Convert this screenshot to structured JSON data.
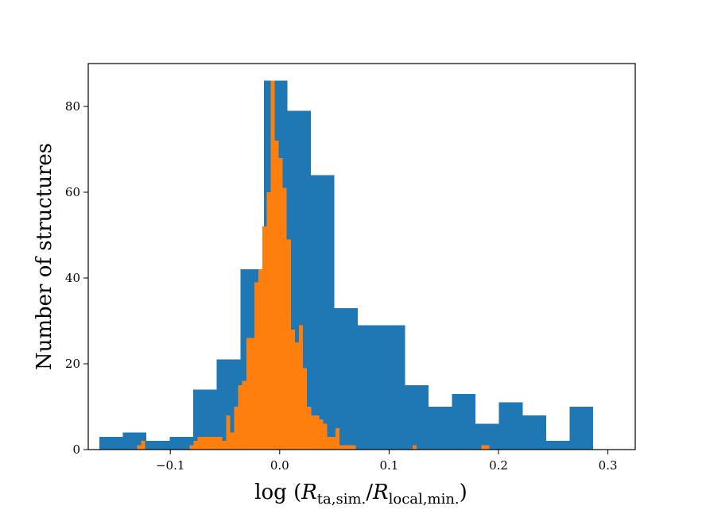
{
  "chart_data": {
    "type": "bar",
    "xlabel": "log (R_ta,sim./R_local,min.)",
    "xlabel_parts": {
      "prefix": "log (",
      "r1": "R",
      "sub1": "ta,sim.",
      "slash": "/",
      "r2": "R",
      "sub2": "local,min.",
      "suffix": ")"
    },
    "ylabel": "Number of structures",
    "xlim": [
      -0.175,
      0.325
    ],
    "ylim": [
      0,
      90
    ],
    "xticks": [
      -0.1,
      0.0,
      0.1,
      0.2,
      0.3
    ],
    "xtick_labels": [
      "−0.1",
      "0.0",
      "0.1",
      "0.2",
      "0.3"
    ],
    "yticks": [
      0,
      20,
      40,
      60,
      80
    ],
    "ytick_labels": [
      "0",
      "20",
      "40",
      "60",
      "80"
    ],
    "grid": false,
    "legend": false,
    "colors": {
      "series1": "#1f77b4",
      "series2": "#ff7f0e"
    },
    "series": [
      {
        "color": "#1f77b4",
        "bins": [
          {
            "x0": -0.165,
            "x1": -0.1435,
            "count": 3
          },
          {
            "x0": -0.1435,
            "x1": -0.122,
            "count": 4
          },
          {
            "x0": -0.122,
            "x1": -0.1005,
            "count": 2
          },
          {
            "x0": -0.1005,
            "x1": -0.079,
            "count": 3
          },
          {
            "x0": -0.079,
            "x1": -0.0575,
            "count": 14
          },
          {
            "x0": -0.0575,
            "x1": -0.036,
            "count": 21
          },
          {
            "x0": -0.036,
            "x1": -0.0145,
            "count": 42
          },
          {
            "x0": -0.0145,
            "x1": 0.007,
            "count": 86
          },
          {
            "x0": 0.007,
            "x1": 0.0285,
            "count": 79
          },
          {
            "x0": 0.0285,
            "x1": 0.05,
            "count": 64
          },
          {
            "x0": 0.05,
            "x1": 0.0715,
            "count": 33
          },
          {
            "x0": 0.0715,
            "x1": 0.093,
            "count": 29
          },
          {
            "x0": 0.093,
            "x1": 0.1145,
            "count": 29
          },
          {
            "x0": 0.1145,
            "x1": 0.136,
            "count": 15
          },
          {
            "x0": 0.136,
            "x1": 0.1575,
            "count": 10
          },
          {
            "x0": 0.1575,
            "x1": 0.179,
            "count": 13
          },
          {
            "x0": 0.179,
            "x1": 0.2005,
            "count": 6
          },
          {
            "x0": 0.2005,
            "x1": 0.222,
            "count": 11
          },
          {
            "x0": 0.222,
            "x1": 0.2435,
            "count": 8
          },
          {
            "x0": 0.2435,
            "x1": 0.265,
            "count": 2
          },
          {
            "x0": 0.265,
            "x1": 0.2865,
            "count": 10
          }
        ]
      },
      {
        "color": "#ff7f0e",
        "bins": [
          {
            "x0": -0.1303,
            "x1": -0.1266,
            "count": 1
          },
          {
            "x0": -0.1266,
            "x1": -0.1229,
            "count": 2
          },
          {
            "x0": -0.0823,
            "x1": -0.0786,
            "count": 1
          },
          {
            "x0": -0.0786,
            "x1": -0.0749,
            "count": 2
          },
          {
            "x0": -0.0749,
            "x1": -0.0712,
            "count": 3
          },
          {
            "x0": -0.0712,
            "x1": -0.0675,
            "count": 3
          },
          {
            "x0": -0.0675,
            "x1": -0.0638,
            "count": 3
          },
          {
            "x0": -0.0638,
            "x1": -0.0601,
            "count": 3
          },
          {
            "x0": -0.0601,
            "x1": -0.0564,
            "count": 3
          },
          {
            "x0": -0.0564,
            "x1": -0.0527,
            "count": 3
          },
          {
            "x0": -0.0527,
            "x1": -0.049,
            "count": 2
          },
          {
            "x0": -0.049,
            "x1": -0.0453,
            "count": 8
          },
          {
            "x0": -0.0453,
            "x1": -0.0416,
            "count": 4
          },
          {
            "x0": -0.0416,
            "x1": -0.0379,
            "count": 10
          },
          {
            "x0": -0.0379,
            "x1": -0.0342,
            "count": 15
          },
          {
            "x0": -0.0342,
            "x1": -0.0305,
            "count": 16
          },
          {
            "x0": -0.0305,
            "x1": -0.0268,
            "count": 26
          },
          {
            "x0": -0.0268,
            "x1": -0.0231,
            "count": 26
          },
          {
            "x0": -0.0231,
            "x1": -0.0194,
            "count": 39
          },
          {
            "x0": -0.0194,
            "x1": -0.0157,
            "count": 42
          },
          {
            "x0": -0.0157,
            "x1": -0.012,
            "count": 52
          },
          {
            "x0": -0.012,
            "x1": -0.0083,
            "count": 60
          },
          {
            "x0": -0.0083,
            "x1": -0.0046,
            "count": 86
          },
          {
            "x0": -0.0046,
            "x1": -0.0009,
            "count": 72
          },
          {
            "x0": -0.0009,
            "x1": 0.0028,
            "count": 68
          },
          {
            "x0": 0.0028,
            "x1": 0.0065,
            "count": 61
          },
          {
            "x0": 0.0065,
            "x1": 0.0102,
            "count": 49
          },
          {
            "x0": 0.0102,
            "x1": 0.0139,
            "count": 28
          },
          {
            "x0": 0.0139,
            "x1": 0.0176,
            "count": 25
          },
          {
            "x0": 0.0176,
            "x1": 0.0213,
            "count": 29
          },
          {
            "x0": 0.0213,
            "x1": 0.025,
            "count": 19
          },
          {
            "x0": 0.025,
            "x1": 0.0287,
            "count": 10
          },
          {
            "x0": 0.0287,
            "x1": 0.0324,
            "count": 8
          },
          {
            "x0": 0.0324,
            "x1": 0.0361,
            "count": 8
          },
          {
            "x0": 0.0361,
            "x1": 0.0398,
            "count": 7
          },
          {
            "x0": 0.0398,
            "x1": 0.0435,
            "count": 6
          },
          {
            "x0": 0.0435,
            "x1": 0.0472,
            "count": 3
          },
          {
            "x0": 0.0472,
            "x1": 0.0509,
            "count": 3
          },
          {
            "x0": 0.0509,
            "x1": 0.0546,
            "count": 5
          },
          {
            "x0": 0.0546,
            "x1": 0.0583,
            "count": 1
          },
          {
            "x0": 0.0583,
            "x1": 0.062,
            "count": 1
          },
          {
            "x0": 0.062,
            "x1": 0.0657,
            "count": 1
          },
          {
            "x0": 0.0657,
            "x1": 0.0694,
            "count": 1
          },
          {
            "x0": 0.1216,
            "x1": 0.1253,
            "count": 1
          },
          {
            "x0": 0.1842,
            "x1": 0.1879,
            "count": 1
          },
          {
            "x0": 0.1879,
            "x1": 0.1916,
            "count": 1
          }
        ]
      }
    ]
  }
}
